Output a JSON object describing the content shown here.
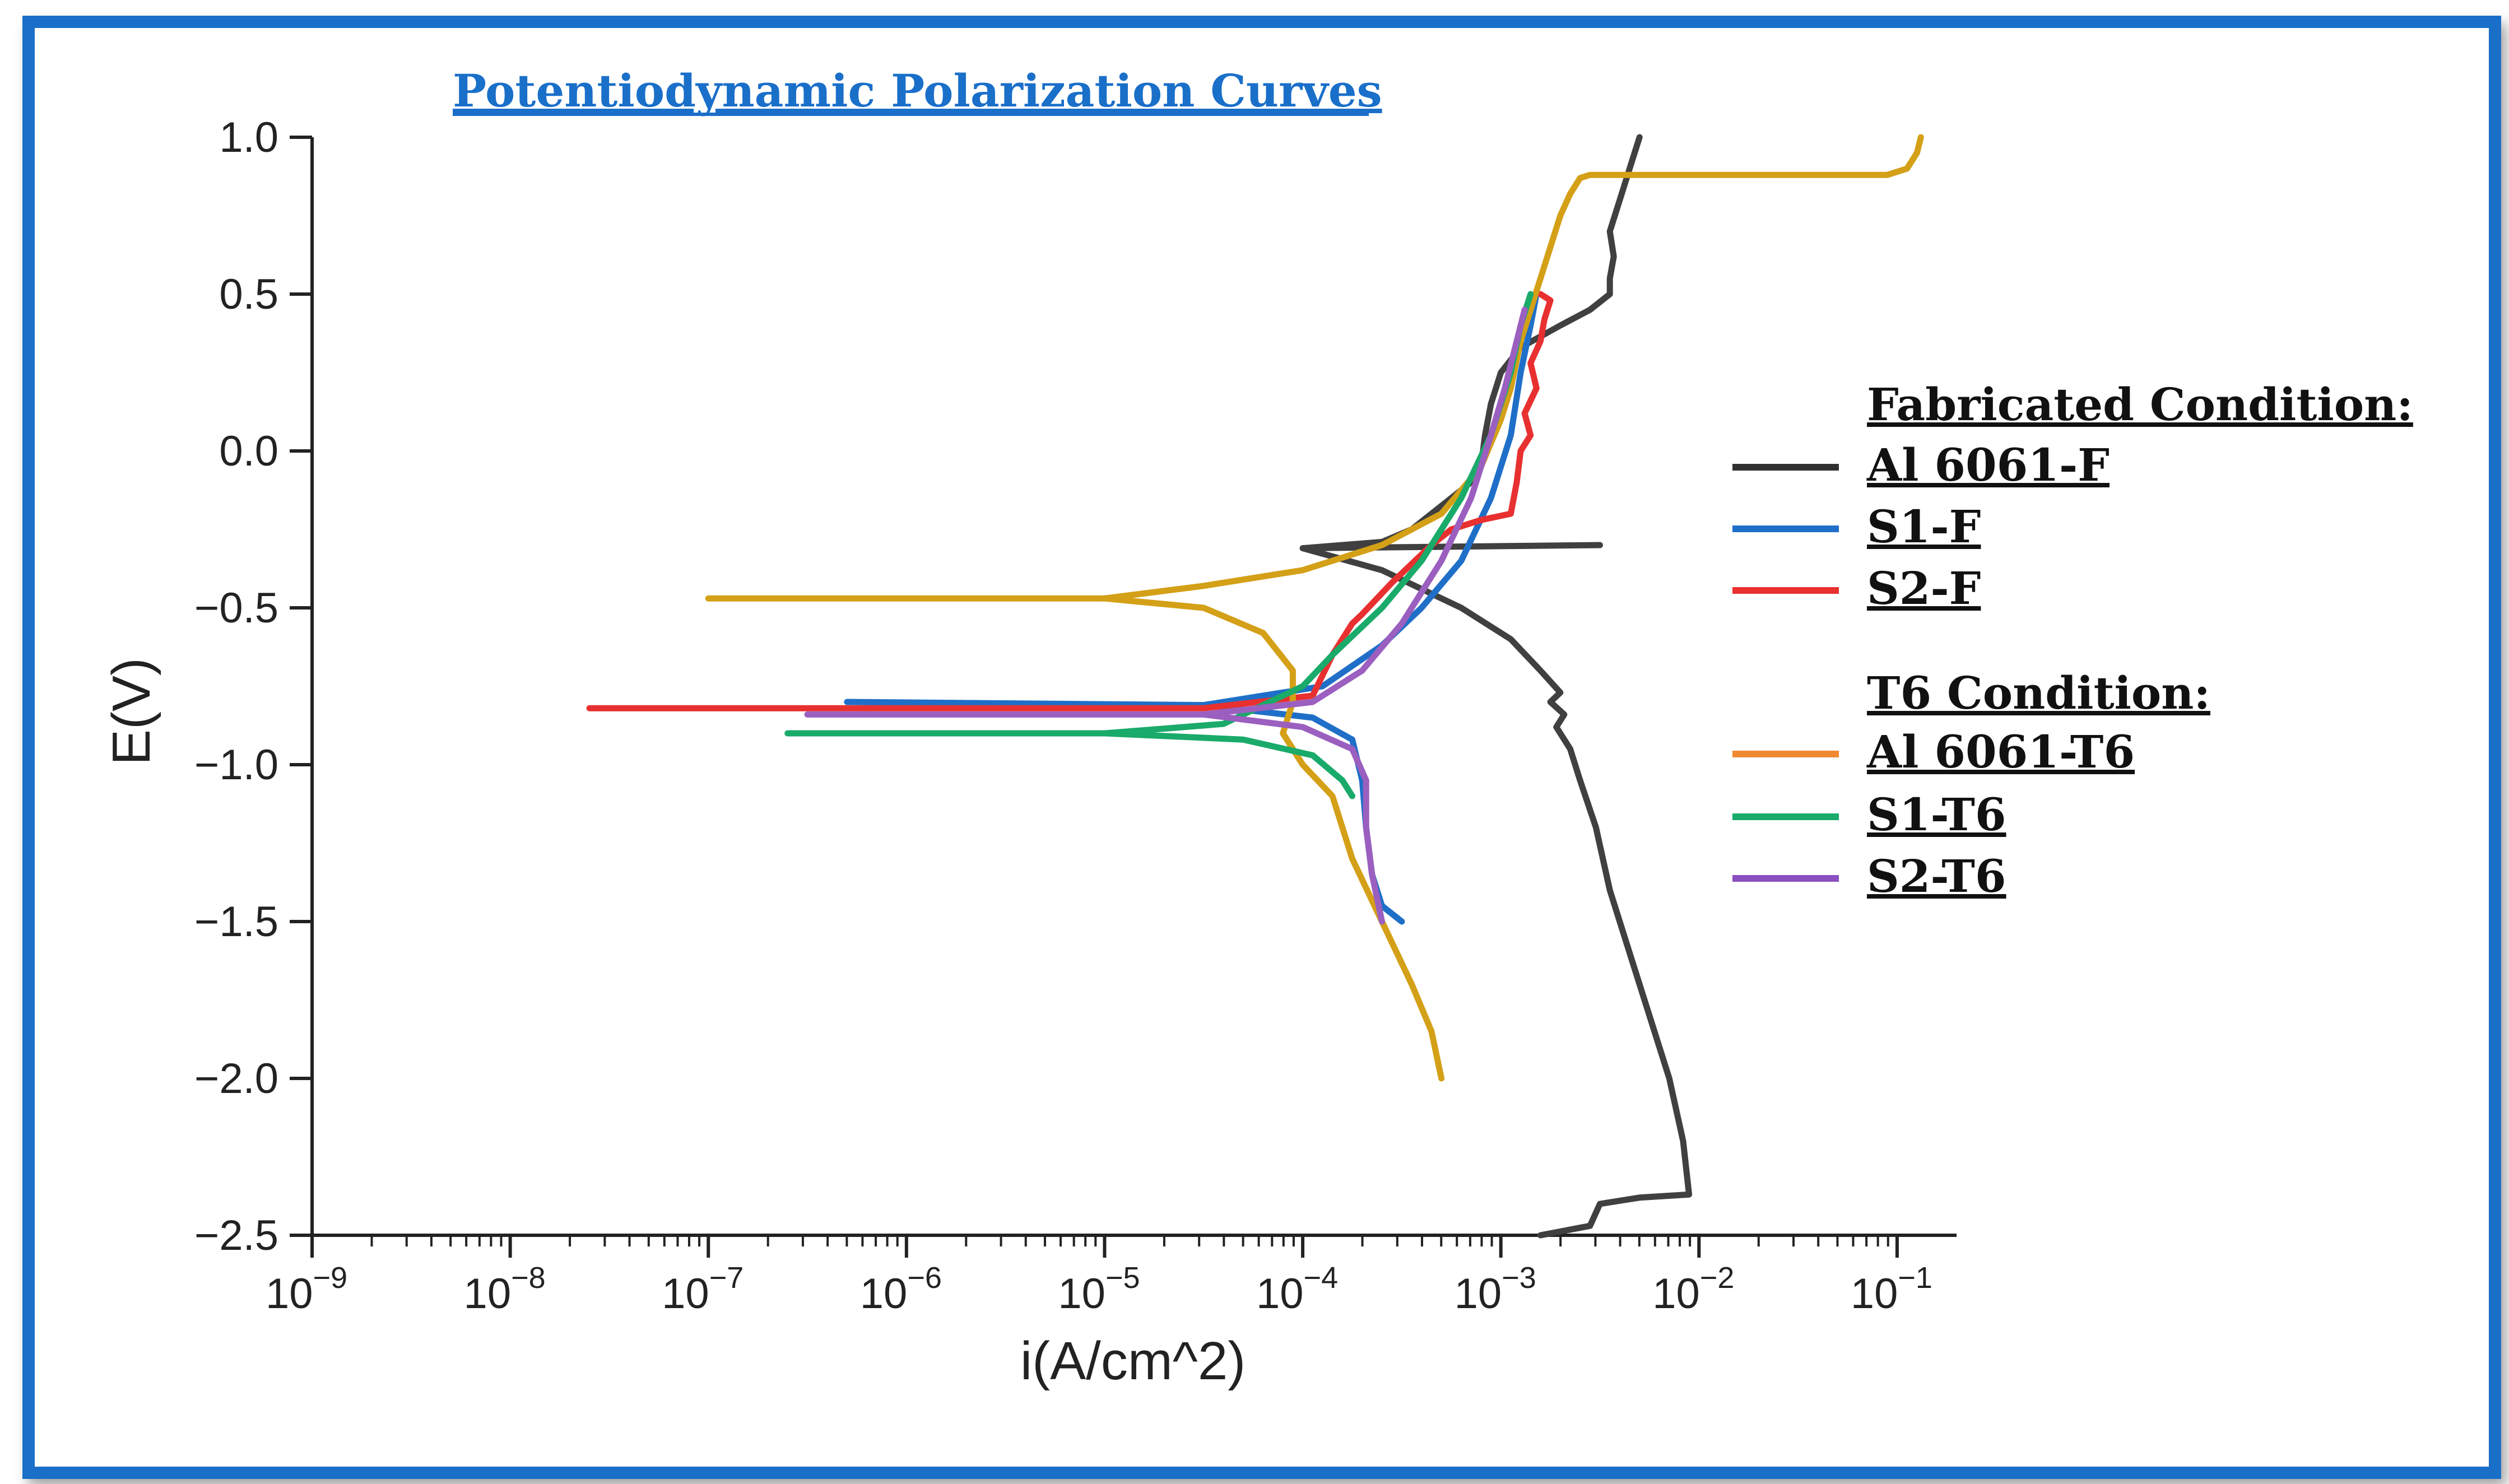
{
  "chart_data": {
    "type": "line",
    "title": "Potentiodynamic Polarization Curves",
    "xlabel": "i(A/cm^2)",
    "ylabel": "E(V)",
    "xscale": "log",
    "xlim_exp": [
      -9,
      -0.7
    ],
    "ylim": [
      -2.5,
      1.0
    ],
    "x_ticks": [
      {
        "base": "10",
        "exp": "−9"
      },
      {
        "base": "10",
        "exp": "−8"
      },
      {
        "base": "10",
        "exp": "−7"
      },
      {
        "base": "10",
        "exp": "−6"
      },
      {
        "base": "10",
        "exp": "−5"
      },
      {
        "base": "10",
        "exp": "−4"
      },
      {
        "base": "10",
        "exp": "−3"
      },
      {
        "base": "10",
        "exp": "−2"
      },
      {
        "base": "10",
        "exp": "−1"
      }
    ],
    "x_tick_exps": [
      -9,
      -8,
      -7,
      -6,
      -5,
      -4,
      -3,
      -2,
      -1
    ],
    "y_ticks": [
      "1.0",
      "0.5",
      "0.0",
      "−0.5",
      "−1.0",
      "−1.5",
      "−2.0",
      "−2.5"
    ],
    "y_tick_values": [
      1.0,
      0.5,
      0.0,
      -0.5,
      -1.0,
      -1.5,
      -2.0,
      -2.5
    ],
    "legend": {
      "group1_title": "Fabricated Condition:",
      "group2_title": "T6 Condition:",
      "placement": "right"
    },
    "series": [
      {
        "name": "Al 6061-F",
        "group": 1,
        "color": "#404040",
        "points": [
          [
            -2.5,
            -0.3
          ],
          [
            -4.0,
            -0.31
          ],
          [
            -3.6,
            -0.29
          ],
          [
            -3.45,
            -0.25
          ],
          [
            -3.35,
            -0.2
          ],
          [
            -3.25,
            -0.15
          ],
          [
            -3.15,
            -0.1
          ],
          [
            -3.1,
            -0.05
          ],
          [
            -3.08,
            0.05
          ],
          [
            -3.05,
            0.15
          ],
          [
            -3.0,
            0.25
          ],
          [
            -2.9,
            0.33
          ],
          [
            -2.7,
            0.4
          ],
          [
            -2.55,
            0.45
          ],
          [
            -2.45,
            0.5
          ],
          [
            -2.45,
            0.55
          ],
          [
            -2.43,
            0.62
          ],
          [
            -2.45,
            0.7
          ],
          [
            -2.4,
            0.8
          ],
          [
            -2.35,
            0.9
          ],
          [
            -2.3,
            1.0
          ],
          null,
          [
            -4.0,
            -0.31
          ],
          [
            -3.6,
            -0.38
          ],
          [
            -3.2,
            -0.5
          ],
          [
            -2.95,
            -0.6
          ],
          [
            -2.8,
            -0.7
          ],
          [
            -2.7,
            -0.77
          ],
          [
            -2.75,
            -0.8
          ],
          [
            -2.68,
            -0.84
          ],
          [
            -2.72,
            -0.88
          ],
          [
            -2.65,
            -0.95
          ],
          [
            -2.6,
            -1.05
          ],
          [
            -2.52,
            -1.2
          ],
          [
            -2.45,
            -1.4
          ],
          [
            -2.35,
            -1.6
          ],
          [
            -2.25,
            -1.8
          ],
          [
            -2.15,
            -2.0
          ],
          [
            -2.08,
            -2.2
          ],
          [
            -2.05,
            -2.37
          ],
          [
            -2.3,
            -2.38
          ],
          [
            -2.5,
            -2.4
          ],
          [
            -2.55,
            -2.47
          ],
          [
            -2.8,
            -2.5
          ]
        ]
      },
      {
        "name": "S1-F",
        "group": 1,
        "color": "#1f6fc8",
        "points": [
          [
            -6.3,
            -0.8
          ],
          [
            -4.5,
            -0.81
          ],
          [
            -3.9,
            -0.75
          ],
          [
            -3.6,
            -0.62
          ],
          [
            -3.4,
            -0.5
          ],
          [
            -3.2,
            -0.35
          ],
          [
            -3.05,
            -0.15
          ],
          [
            -2.95,
            0.05
          ],
          [
            -2.9,
            0.25
          ],
          [
            -2.85,
            0.4
          ],
          [
            -2.82,
            0.5
          ],
          null,
          [
            -4.5,
            -0.81
          ],
          [
            -3.95,
            -0.85
          ],
          [
            -3.75,
            -0.92
          ],
          [
            -3.7,
            -1.05
          ],
          [
            -3.68,
            -1.2
          ],
          [
            -3.65,
            -1.35
          ],
          [
            -3.6,
            -1.45
          ],
          [
            -3.5,
            -1.5
          ]
        ]
      },
      {
        "name": "S2-F",
        "group": 1,
        "color": "#e83030",
        "points": [
          [
            -7.6,
            -0.82
          ],
          [
            -4.5,
            -0.82
          ],
          [
            -3.95,
            -0.78
          ],
          [
            -3.85,
            -0.65
          ],
          [
            -3.75,
            -0.55
          ],
          [
            -3.7,
            -0.52
          ],
          [
            -3.55,
            -0.42
          ],
          [
            -3.35,
            -0.3
          ],
          [
            -3.25,
            -0.25
          ],
          [
            -3.1,
            -0.22
          ],
          [
            -2.95,
            -0.2
          ],
          [
            -2.92,
            -0.1
          ],
          [
            -2.9,
            0.0
          ],
          [
            -2.85,
            0.05
          ],
          [
            -2.88,
            0.12
          ],
          [
            -2.82,
            0.2
          ],
          [
            -2.85,
            0.28
          ],
          [
            -2.8,
            0.35
          ],
          [
            -2.78,
            0.42
          ],
          [
            -2.75,
            0.48
          ],
          [
            -2.8,
            0.5
          ]
        ]
      },
      {
        "name": "Al 6061-T6",
        "group": 2,
        "color": "#d4a017",
        "points": [
          [
            -7.0,
            -0.47
          ],
          [
            -5.0,
            -0.47
          ],
          [
            -4.5,
            -0.43
          ],
          [
            -4.0,
            -0.38
          ],
          [
            -3.6,
            -0.3
          ],
          [
            -3.3,
            -0.2
          ],
          [
            -3.1,
            -0.05
          ],
          [
            -3.0,
            0.1
          ],
          [
            -2.95,
            0.2
          ],
          [
            -2.9,
            0.35
          ],
          [
            -2.85,
            0.45
          ],
          [
            -2.8,
            0.55
          ],
          [
            -2.75,
            0.65
          ],
          [
            -2.7,
            0.75
          ],
          [
            -2.65,
            0.82
          ],
          [
            -2.6,
            0.87
          ],
          [
            -2.55,
            0.88
          ],
          [
            -2.0,
            0.88
          ],
          [
            -1.5,
            0.88
          ],
          [
            -1.05,
            0.88
          ],
          [
            -0.95,
            0.9
          ],
          [
            -0.9,
            0.95
          ],
          [
            -0.88,
            1.0
          ],
          null,
          [
            -5.0,
            -0.47
          ],
          [
            -4.5,
            -0.5
          ],
          [
            -4.2,
            -0.58
          ],
          [
            -4.05,
            -0.7
          ],
          [
            -4.05,
            -0.8
          ],
          [
            -4.1,
            -0.9
          ],
          [
            -4.0,
            -1.0
          ],
          [
            -3.85,
            -1.1
          ],
          [
            -3.75,
            -1.3
          ],
          [
            -3.6,
            -1.5
          ],
          [
            -3.45,
            -1.7
          ],
          [
            -3.35,
            -1.85
          ],
          [
            -3.3,
            -2.0
          ]
        ]
      },
      {
        "name": "S1-T6",
        "group": 2,
        "color": "#1aaa6a",
        "points": [
          [
            -6.6,
            -0.9
          ],
          [
            -5.0,
            -0.9
          ],
          [
            -4.3,
            -0.92
          ],
          [
            -3.95,
            -0.97
          ],
          [
            -3.8,
            -1.05
          ],
          [
            -3.75,
            -1.1
          ],
          null,
          [
            -5.0,
            -0.9
          ],
          [
            -4.4,
            -0.87
          ],
          [
            -4.0,
            -0.75
          ],
          [
            -3.85,
            -0.65
          ],
          [
            -3.6,
            -0.5
          ],
          [
            -3.4,
            -0.35
          ],
          [
            -3.2,
            -0.15
          ],
          [
            -3.05,
            0.05
          ],
          [
            -2.95,
            0.25
          ],
          [
            -2.9,
            0.4
          ],
          [
            -2.85,
            0.5
          ]
        ]
      },
      {
        "name": "S2-T6",
        "group": 2,
        "color": "#9b5fc0",
        "points": [
          [
            -6.5,
            -0.84
          ],
          [
            -4.5,
            -0.84
          ],
          [
            -3.95,
            -0.8
          ],
          [
            -3.7,
            -0.7
          ],
          [
            -3.5,
            -0.55
          ],
          [
            -3.3,
            -0.35
          ],
          [
            -3.15,
            -0.15
          ],
          [
            -3.05,
            0.05
          ],
          [
            -2.98,
            0.2
          ],
          [
            -2.92,
            0.35
          ],
          [
            -2.88,
            0.45
          ],
          null,
          [
            -4.5,
            -0.84
          ],
          [
            -4.0,
            -0.88
          ],
          [
            -3.75,
            -0.95
          ],
          [
            -3.68,
            -1.05
          ],
          [
            -3.68,
            -1.2
          ],
          [
            -3.65,
            -1.35
          ],
          [
            -3.6,
            -1.5
          ]
        ]
      }
    ],
    "legend_swatch_colors": [
      "#303030",
      "#1f6fc8",
      "#e83030",
      "#f08a30",
      "#1aaa6a",
      "#8a4fc0"
    ]
  }
}
